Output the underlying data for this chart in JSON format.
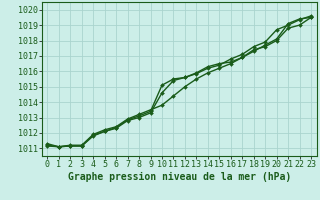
{
  "title": "Graphe pression niveau de la mer (hPa)",
  "background_color": "#cceee8",
  "grid_color": "#aad4ce",
  "line_color_dark": "#1a5c1a",
  "line_color_mid": "#2e7d2e",
  "xlim": [
    -0.5,
    23.5
  ],
  "ylim": [
    1010.5,
    1020.5
  ],
  "xticks": [
    0,
    1,
    2,
    3,
    4,
    5,
    6,
    7,
    8,
    9,
    10,
    11,
    12,
    13,
    14,
    15,
    16,
    17,
    18,
    19,
    20,
    21,
    22,
    23
  ],
  "yticks": [
    1011,
    1012,
    1013,
    1014,
    1015,
    1016,
    1017,
    1018,
    1019,
    1020
  ],
  "series": [
    [
      1011.3,
      1011.1,
      1011.2,
      1011.2,
      1011.9,
      1012.2,
      1012.4,
      1012.9,
      1013.2,
      1013.5,
      1013.8,
      1014.4,
      1015.0,
      1015.5,
      1015.9,
      1016.2,
      1016.5,
      1016.9,
      1017.3,
      1017.7,
      1018.1,
      1019.1,
      1019.4,
      1019.5
    ],
    [
      1011.2,
      1011.1,
      1011.15,
      1011.15,
      1011.85,
      1012.1,
      1012.3,
      1012.8,
      1013.0,
      1013.3,
      1014.6,
      1015.4,
      1015.6,
      1015.9,
      1016.3,
      1016.5,
      1016.6,
      1016.9,
      1017.4,
      1017.6,
      1018.0,
      1018.8,
      1019.0,
      1019.5
    ],
    [
      1011.15,
      1011.1,
      1011.15,
      1011.15,
      1011.8,
      1012.1,
      1012.35,
      1012.85,
      1013.1,
      1013.4,
      1015.1,
      1015.5,
      1015.6,
      1015.85,
      1016.2,
      1016.4,
      1016.8,
      1017.1,
      1017.6,
      1017.9,
      1018.7,
      1019.0,
      1019.35,
      1019.6
    ]
  ],
  "xlabel_fontsize": 7,
  "tick_fontsize": 6
}
